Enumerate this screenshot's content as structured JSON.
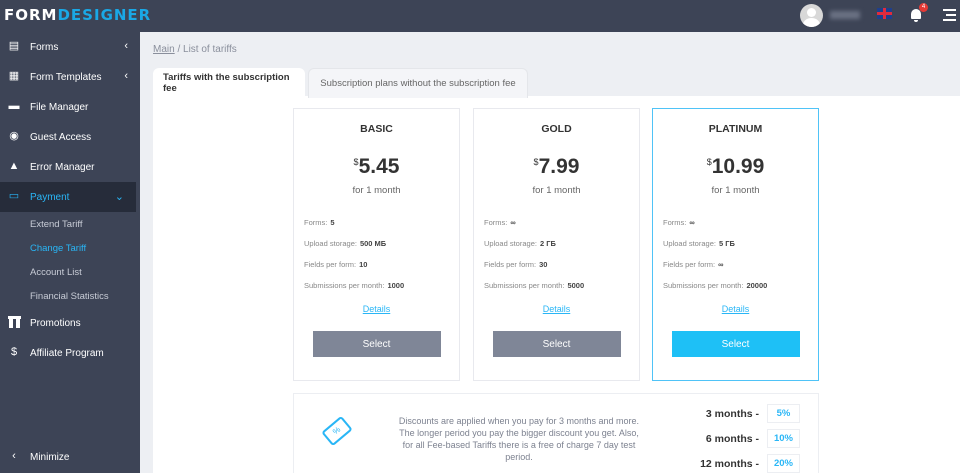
{
  "header": {
    "logo_a": "FORM",
    "logo_b": "DESIGNER",
    "notification_count": "4"
  },
  "sidebar": {
    "items": [
      {
        "label": "Forms",
        "icon": "forms-icon"
      },
      {
        "label": "Form Templates",
        "icon": "template-icon"
      },
      {
        "label": "File Manager",
        "icon": "file-icon"
      },
      {
        "label": "Guest Access",
        "icon": "user-circle-icon"
      },
      {
        "label": "Error Manager",
        "icon": "warning-icon"
      },
      {
        "label": "Payment",
        "icon": "card-icon"
      }
    ],
    "payment_sub": [
      "Extend Tariff",
      "Change Tariff",
      "Account List",
      "Financial Statistics"
    ],
    "items2": [
      {
        "label": "Promotions"
      },
      {
        "label": "Affiliate Program"
      }
    ],
    "minimize": "Minimize"
  },
  "breadcrumb": {
    "main": "Main",
    "current": "/ List of tariffs"
  },
  "tabs": [
    "Tariffs with the subscription fee",
    "Subscription plans without the subscription fee"
  ],
  "plans": [
    {
      "name": "BASIC",
      "currency": "$",
      "price": "5.45",
      "period": "for 1 month",
      "forms": "5",
      "storage": "500 МБ",
      "fields": "10",
      "submissions": "1000",
      "details": "Details",
      "select": "Select"
    },
    {
      "name": "GOLD",
      "currency": "$",
      "price": "7.99",
      "period": "for 1 month",
      "forms": "∞",
      "storage": "2 ГБ",
      "fields": "30",
      "submissions": "5000",
      "details": "Details",
      "select": "Select"
    },
    {
      "name": "PLATINUM",
      "currency": "$",
      "price": "10.99",
      "period": "for 1 month",
      "forms": "∞",
      "storage": "5 ГБ",
      "fields": "∞",
      "submissions": "20000",
      "details": "Details",
      "select": "Select"
    }
  ],
  "feature_labels": {
    "forms": "Forms:",
    "storage": "Upload storage:",
    "fields": "Fields per form:",
    "submissions": "Submissions per month:"
  },
  "discount": {
    "text": "Discounts are applied when you pay for 3 months and more. The longer period you pay the bigger discount you get. Also, for all Fee-based Tariffs there is a free of charge 7 day test period.",
    "rows": [
      {
        "label": "3 months -",
        "value": "5%"
      },
      {
        "label": "6 months -",
        "value": "10%"
      },
      {
        "label": "12 months -",
        "value": "20%"
      }
    ]
  },
  "colors": {
    "accent": "#29b6f6",
    "sidebar": "#3d4456"
  }
}
